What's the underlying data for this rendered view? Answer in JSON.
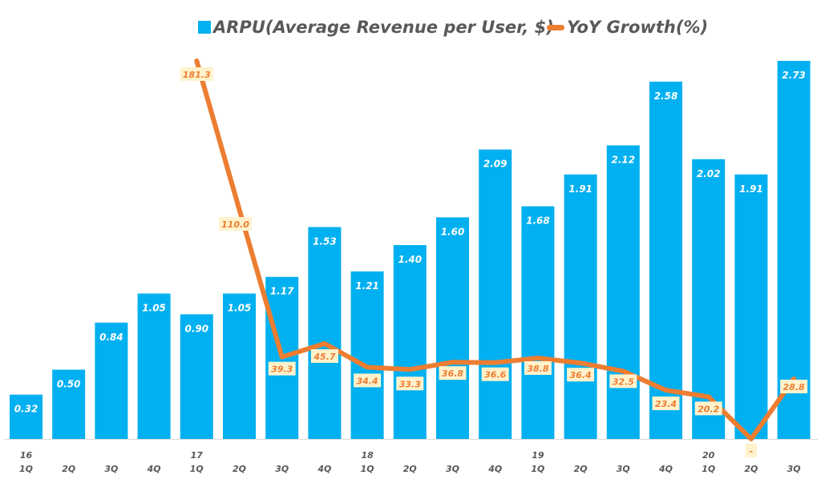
{
  "chart_data": {
    "type": "bar",
    "title": "",
    "xlabel": "",
    "ylabel": "",
    "legend_position": "top-center",
    "grid": false,
    "categories": [
      "16 1Q",
      "2Q",
      "3Q",
      "4Q",
      "17 1Q",
      "2Q",
      "3Q",
      "4Q",
      "18 1Q",
      "2Q",
      "3Q",
      "4Q",
      "19 1Q",
      "2Q",
      "3Q",
      "4Q",
      "20 1Q",
      "2Q",
      "3Q"
    ],
    "x_tick_quarters": [
      "1Q",
      "2Q",
      "3Q",
      "4Q",
      "1Q",
      "2Q",
      "3Q",
      "4Q",
      "1Q",
      "2Q",
      "3Q",
      "4Q",
      "1Q",
      "2Q",
      "3Q",
      "4Q",
      "1Q",
      "2Q",
      "3Q"
    ],
    "x_tick_years": [
      "16",
      "",
      "",
      "",
      "17",
      "",
      "",
      "",
      "18",
      "",
      "",
      "",
      "19",
      "",
      "",
      "",
      "20",
      "",
      ""
    ],
    "series": [
      {
        "name": "ARPU(Average Revenue per User, $)",
        "type": "bar",
        "color": "#00B0F0",
        "values": [
          0.32,
          0.5,
          0.84,
          1.05,
          0.9,
          1.05,
          1.17,
          1.53,
          1.21,
          1.4,
          1.6,
          2.09,
          1.68,
          1.91,
          2.12,
          2.58,
          2.02,
          1.91,
          2.73
        ],
        "labels": [
          "0.32",
          "0.50",
          "0.84",
          "1.05",
          "0.90",
          "1.05",
          "1.17",
          "1.53",
          "1.21",
          "1.40",
          "1.60",
          "2.09",
          "1.68",
          "1.91",
          "2.12",
          "2.58",
          "2.02",
          "1.91",
          "2.73"
        ]
      },
      {
        "name": "YoY Growth(%)",
        "type": "line",
        "color": "#ED7D31",
        "values": [
          null,
          null,
          null,
          null,
          181.3,
          110.0,
          39.3,
          45.7,
          34.4,
          33.3,
          36.8,
          36.6,
          38.8,
          36.4,
          32.5,
          23.4,
          20.2,
          0,
          28.8
        ],
        "labels": [
          "",
          "",
          "",
          "",
          "181.3",
          "110.0",
          "39.3",
          "45.7",
          "34.4",
          "33.3",
          "36.8",
          "36.6",
          "38.8",
          "36.4",
          "32.5",
          "23.4",
          "20.2",
          "-",
          "28.8"
        ]
      }
    ],
    "y_range_bar": [
      0,
      2.73
    ],
    "y_range_line": [
      0,
      181.3
    ]
  },
  "legend": {
    "bar_label": "ARPU(Average Revenue per User, $)",
    "line_label": "YoY Growth(%)"
  },
  "colors": {
    "bar": "#00B0F0",
    "line": "#ED7D31",
    "label_box": "#FFF2CC",
    "axis_text": "#595959"
  }
}
